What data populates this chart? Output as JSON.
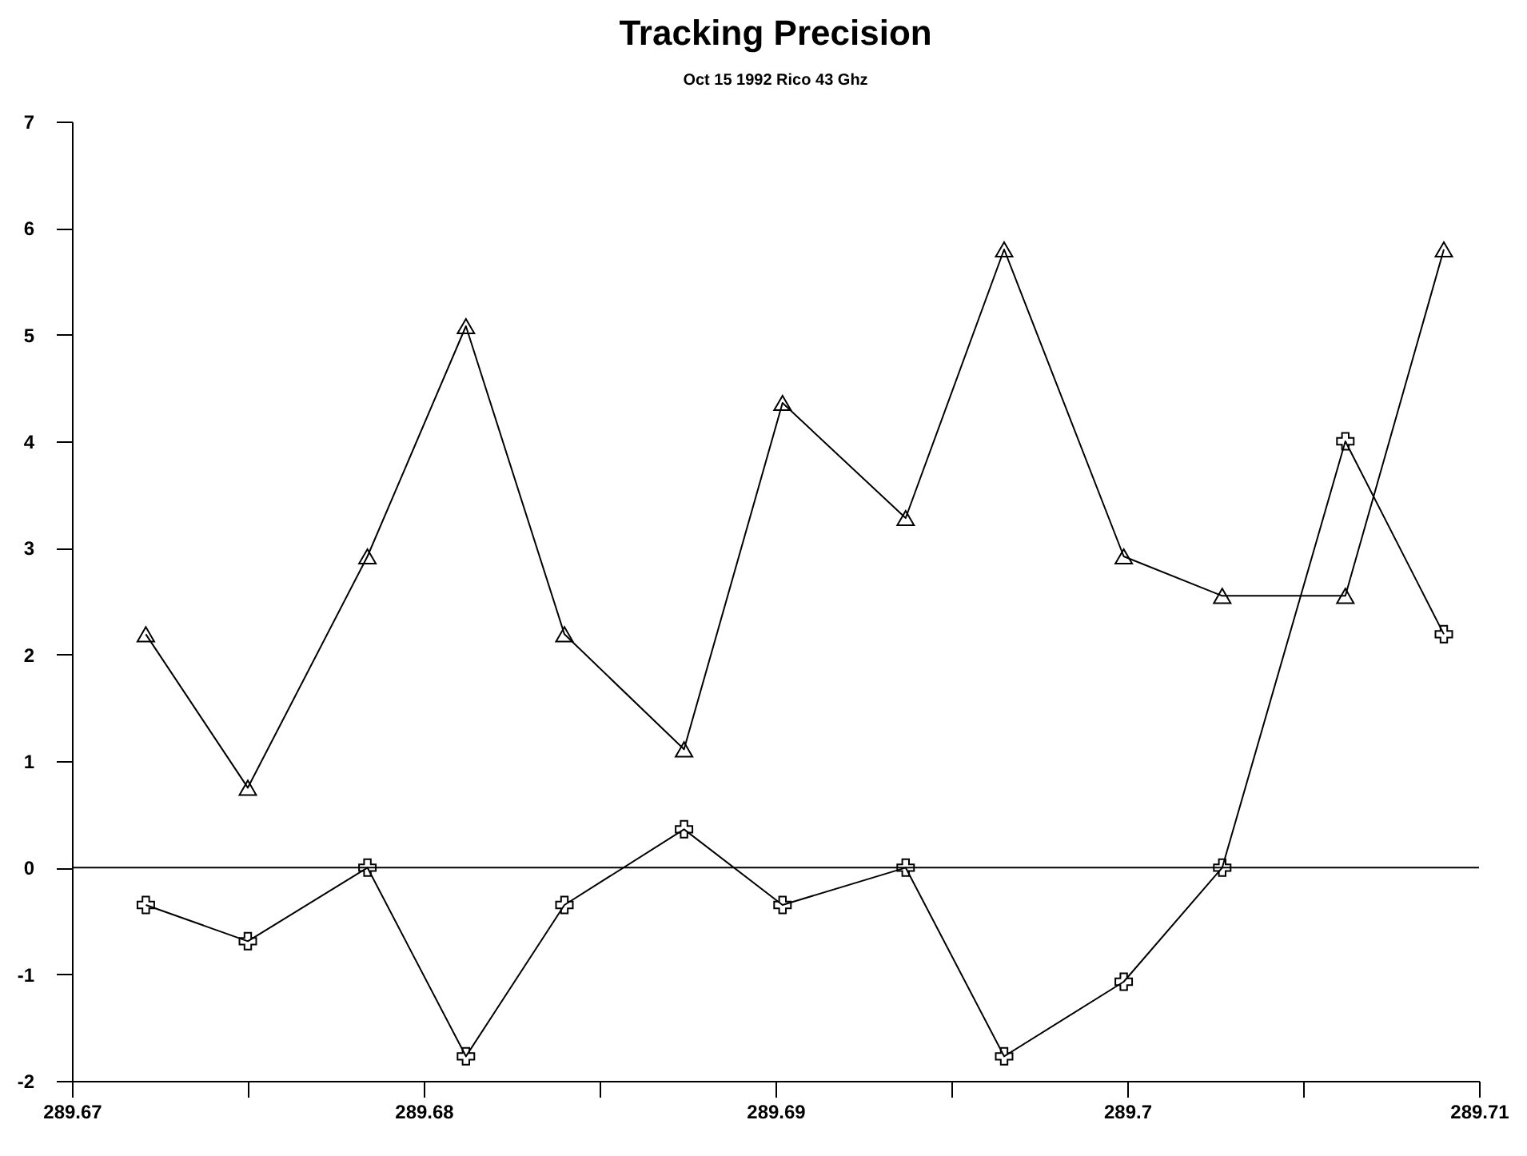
{
  "chart_data": {
    "type": "line",
    "title": "Tracking Precision",
    "subtitle": "Oct 15 1992 Rico 43 Ghz",
    "x": [
      289.6721,
      289.675,
      289.6784,
      289.6812,
      289.684,
      289.6874,
      289.6902,
      289.6937,
      289.6965,
      289.6999,
      289.7027,
      289.7062,
      289.709
    ],
    "series": [
      {
        "color": "#000000",
        "marker": "triangle",
        "values": [
          2.19,
          0.75,
          2.92,
          5.08,
          2.19,
          1.11,
          4.36,
          3.28,
          5.8,
          2.92,
          2.55,
          2.55,
          5.8
        ]
      },
      {
        "color": "#000000",
        "marker": "cross",
        "values": [
          -0.35,
          -0.69,
          0,
          -1.77,
          -0.35,
          0.36,
          -0.35,
          0,
          -1.77,
          -1.07,
          0,
          4.0,
          2.19
        ]
      }
    ],
    "xlim": [
      289.67,
      289.71
    ],
    "xticks": [
      {
        "value": 289.67,
        "label": "289.67"
      },
      {
        "value": 289.675,
        "label": null
      },
      {
        "value": 289.68,
        "label": "289.68"
      },
      {
        "value": 289.685,
        "label": null
      },
      {
        "value": 289.69,
        "label": "289.69"
      },
      {
        "value": 289.695,
        "label": null
      },
      {
        "value": 289.7,
        "label": "289.7"
      },
      {
        "value": 289.705,
        "label": null
      },
      {
        "value": 289.71,
        "label": "289.71"
      }
    ],
    "ylim": [
      -2,
      7
    ],
    "yticks": [
      -2,
      -1,
      0,
      1,
      2,
      3,
      4,
      5,
      6,
      7
    ],
    "ref_lines": [
      {
        "axis": "y",
        "value": 0,
        "color": "#000000"
      }
    ],
    "grid": false
  }
}
